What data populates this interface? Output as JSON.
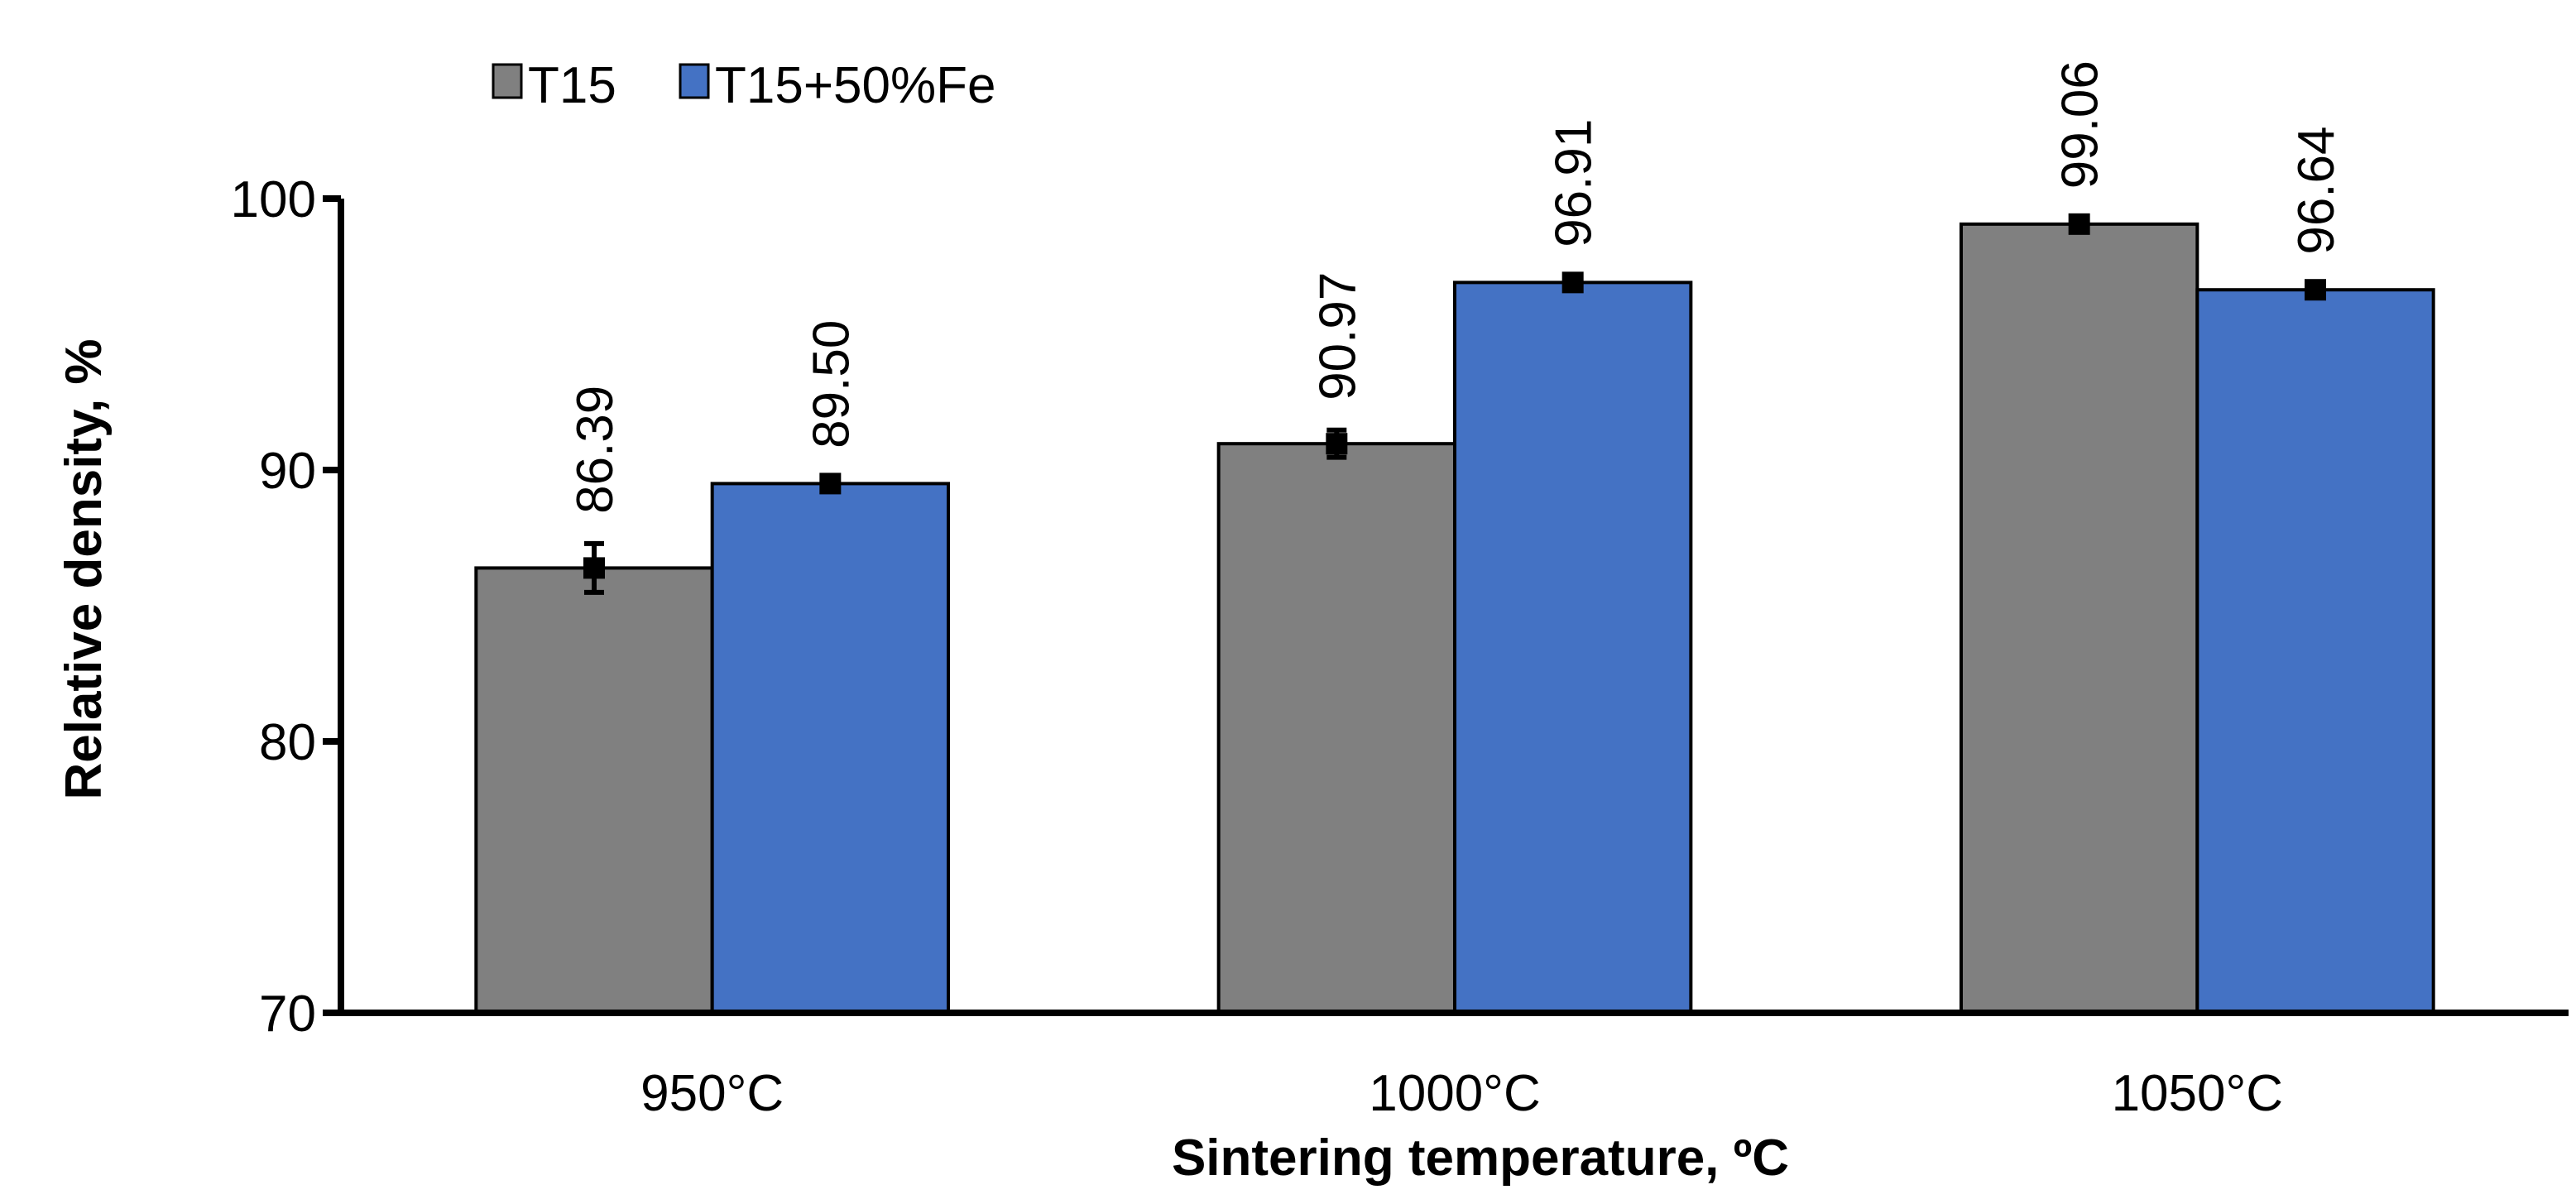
{
  "chart_data": {
    "type": "bar",
    "title": "",
    "xlabel": "Sintering temperature, ºC",
    "ylabel": "Relative density, %",
    "categories": [
      "950°C",
      "1000°C",
      "1050°C"
    ],
    "ylim": [
      70,
      100
    ],
    "yticks": [
      70,
      80,
      90,
      100
    ],
    "grid": false,
    "legend_position": "top-left",
    "series": [
      {
        "name": "T15",
        "color": "#808080",
        "values": [
          86.39,
          90.97,
          99.06
        ],
        "labels": [
          "86.39",
          "90.97",
          "99.06"
        ],
        "errors": [
          0.9,
          0.5,
          0.2
        ]
      },
      {
        "name": "T15+50%Fe",
        "color": "#4472C4",
        "values": [
          89.5,
          96.91,
          96.64
        ],
        "labels": [
          "89.50",
          "96.91",
          "96.64"
        ],
        "errors": [
          0.2,
          0.2,
          0.2
        ]
      }
    ]
  }
}
